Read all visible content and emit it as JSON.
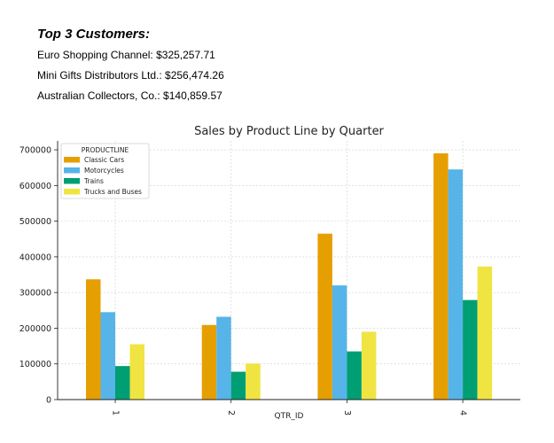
{
  "summary": {
    "heading": "Top 3 Customers:",
    "lines": [
      "Euro Shopping Channel: $325,257.71",
      "Mini Gifts Distributors Ltd.: $256,474.26",
      "Australian Collectors, Co.: $140,859.57"
    ]
  },
  "chart_data": {
    "type": "bar",
    "title": "Sales by Product Line by Quarter",
    "xlabel": "QTR_ID",
    "ylabel": "",
    "categories": [
      "1",
      "2",
      "3",
      "4"
    ],
    "series": [
      {
        "name": "Classic Cars",
        "values": [
          337000,
          209000,
          465000,
          690000
        ],
        "color": "#E69F00"
      },
      {
        "name": "Motorcycles",
        "values": [
          245000,
          232000,
          320000,
          645000
        ],
        "color": "#56B4E9"
      },
      {
        "name": "Trains",
        "values": [
          94000,
          78000,
          135000,
          279000
        ],
        "color": "#009E73"
      },
      {
        "name": "Trucks and Buses",
        "values": [
          155000,
          101000,
          190000,
          373000
        ],
        "color": "#F0E442"
      }
    ],
    "ylim": [
      0,
      725000
    ],
    "yticks": [
      0,
      100000,
      200000,
      300000,
      400000,
      500000,
      600000,
      700000
    ],
    "legend": {
      "title": "PRODUCTLINE",
      "placement": "top-left"
    },
    "grid": true
  }
}
